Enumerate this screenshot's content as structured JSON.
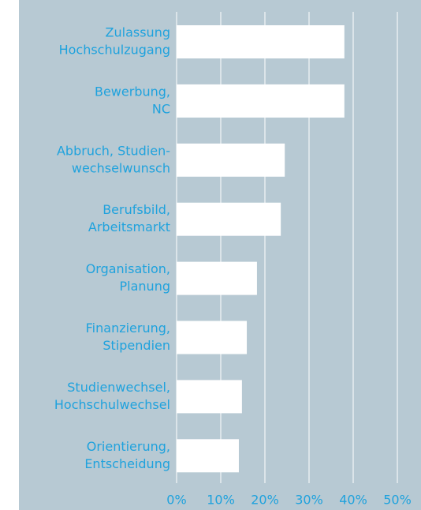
{
  "chart_data": {
    "type": "bar",
    "orientation": "horizontal",
    "categories": [
      [
        "Zulassung",
        "Hochschulzugang"
      ],
      [
        "Bewerbung,",
        "NC"
      ],
      [
        "Abbruch, Studien-",
        "wechselwunsch"
      ],
      [
        "Berufsbild,",
        "Arbeitsmarkt"
      ],
      [
        "Organisation,",
        "Planung"
      ],
      [
        "Finanzierung,",
        "Stipendien"
      ],
      [
        "Studienwechsel,",
        "Hochschulwechsel"
      ],
      [
        "Orientierung,",
        "Entscheidung"
      ]
    ],
    "values": [
      38,
      38,
      24.5,
      23.6,
      18.2,
      15.9,
      14.8,
      14.1
    ],
    "color": "#ffffff",
    "xlim": [
      0,
      50
    ],
    "xticks": [
      {
        "value": 0,
        "label": "0%"
      },
      {
        "value": 10,
        "label": "10%"
      },
      {
        "value": 20,
        "label": "20%"
      },
      {
        "value": 30,
        "label": "30%"
      },
      {
        "value": 40,
        "label": "40%"
      },
      {
        "value": 50,
        "label": "50%"
      }
    ],
    "grid": true
  }
}
